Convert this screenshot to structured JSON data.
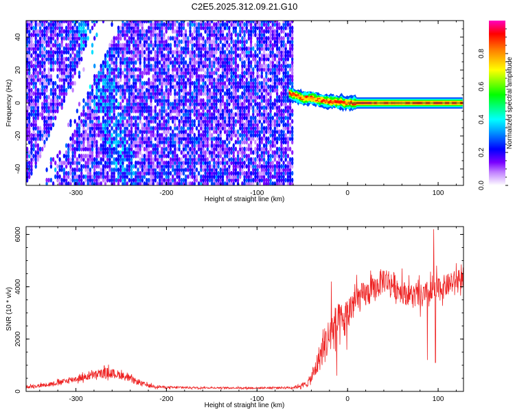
{
  "title": "C2E5.2025.312.09.21.G10",
  "colors": {
    "snr_line": "#ee2222",
    "colormap": [
      "#ffffff",
      "#c080ff",
      "#7a00ff",
      "#0000ff",
      "#00ffff",
      "#00ff00",
      "#ffff00",
      "#ff8000",
      "#ff0000",
      "#ff00c0"
    ]
  },
  "chart_data": [
    {
      "type": "heatmap",
      "xlabel": "Height of straight line (km)",
      "ylabel": "Frequency (Hz)",
      "xlim": [
        -355,
        128
      ],
      "ylim": [
        -50,
        50
      ],
      "xticks": [
        -300,
        -200,
        -100,
        0,
        100
      ],
      "yticks": [
        -40,
        -20,
        0,
        20,
        40
      ],
      "grid": false,
      "description_of_values": "normalized spectral amplitude, 0..1",
      "noise_region_x": [
        -355,
        -60
      ],
      "noise_level": [
        0.05,
        0.3
      ],
      "white_gaps": [
        {
          "x_at_top": -265,
          "x_at_bottom": -340,
          "width": 25
        },
        {
          "x_at_top": -255,
          "x_at_bottom": -350,
          "width": 12
        }
      ],
      "dark_streak": {
        "x_at_top": -290,
        "x_at_bottom": -245
      },
      "signal_trace": [
        {
          "x": -65,
          "freq": 6,
          "amp": 0.5
        },
        {
          "x": -50,
          "freq": 3,
          "amp": 0.7
        },
        {
          "x": -40,
          "freq": 3,
          "amp": 0.6
        },
        {
          "x": -25,
          "freq": 1,
          "amp": 0.75
        },
        {
          "x": -10,
          "freq": 0.5,
          "amp": 0.8
        },
        {
          "x": 0,
          "freq": 0,
          "amp": 0.9
        },
        {
          "x": 50,
          "freq": 0,
          "amp": 0.95
        },
        {
          "x": 100,
          "freq": 0,
          "amp": 0.95
        },
        {
          "x": 128,
          "freq": 0,
          "amp": 0.95
        }
      ],
      "colorbar": {
        "label": "Normalized spectral amplitude",
        "range": [
          0,
          1
        ],
        "ticks": [
          "0.0",
          "0.2",
          "0.4",
          "0.6",
          "0.8"
        ]
      }
    },
    {
      "type": "line",
      "xlabel": "Height of straight line (km)",
      "ylabel": "SNR (10 * v/v)",
      "xlim": [
        -355,
        128
      ],
      "ylim": [
        0,
        6300
      ],
      "xticks": [
        -300,
        -200,
        -100,
        0,
        100
      ],
      "yticks": [
        0,
        2000,
        4000,
        6000
      ],
      "grid": false,
      "series": [
        {
          "x": [
            -355,
            -340,
            -320,
            -300,
            -280,
            -265,
            -250,
            -235,
            -220,
            -200,
            -150,
            -100,
            -60,
            -45,
            -40,
            -35,
            -30,
            -25,
            -20,
            -15,
            -10,
            -5,
            0,
            5,
            10,
            20,
            30,
            40,
            50,
            60,
            70,
            80,
            90,
            95,
            100,
            110,
            120,
            128
          ],
          "y": [
            180,
            220,
            330,
            480,
            620,
            720,
            620,
            400,
            220,
            150,
            140,
            130,
            150,
            280,
            500,
            900,
            1400,
            1800,
            2100,
            2400,
            2500,
            2600,
            2900,
            3300,
            3500,
            3700,
            3900,
            4300,
            4100,
            3800,
            3700,
            3600,
            3700,
            3800,
            3900,
            4050,
            4250,
            4300
          ],
          "noise": [
            80,
            90,
            120,
            160,
            200,
            250,
            200,
            150,
            90,
            60,
            40,
            40,
            60,
            150,
            300,
            500,
            700,
            900,
            1000,
            1050,
            1100,
            1000,
            950,
            850,
            700,
            650,
            600,
            650,
            650,
            550,
            550,
            600,
            700,
            900,
            600,
            550,
            500,
            450
          ],
          "spikes": [
            {
              "x": -18,
              "y": 4200
            },
            {
              "x": -12,
              "y": 600
            },
            {
              "x": 8,
              "y": 4100
            },
            {
              "x": 40,
              "y": 4600
            },
            {
              "x": 60,
              "y": 4700
            },
            {
              "x": 88,
              "y": 1200
            },
            {
              "x": 95,
              "y": 6200
            },
            {
              "x": 97,
              "y": 1100
            },
            {
              "x": 120,
              "y": 4900
            }
          ]
        }
      ]
    }
  ]
}
